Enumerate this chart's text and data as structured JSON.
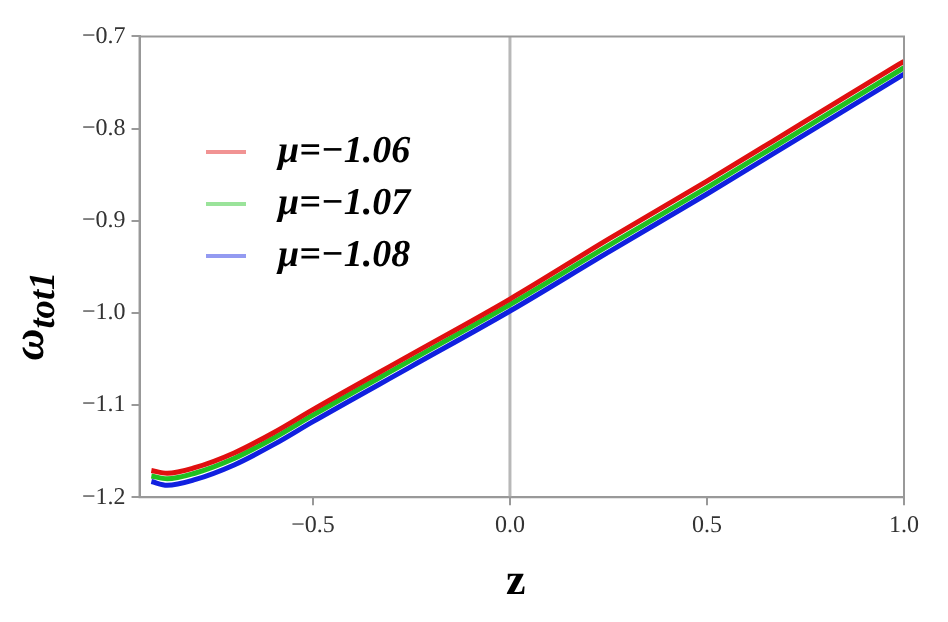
{
  "chart_data": {
    "type": "line",
    "xlabel": "z",
    "ylabel": "ω$_{tot1}$",
    "xlim": [
      -0.94,
      1.0
    ],
    "xticks": [
      {
        "value": -0.5,
        "label": "−0.5"
      },
      {
        "value": 0,
        "label": "0.0"
      },
      0.5,
      {
        "value": 1,
        "label": "1.0"
      }
    ],
    "ylim": [
      -1.2,
      -0.7
    ],
    "yticks": [
      {
        "value": -1.2,
        "label": "−1.2"
      },
      {
        "value": -1.1,
        "label": "−1.1"
      },
      {
        "value": -1.0,
        "label": "−1.0"
      },
      {
        "value": -0.9,
        "label": "−0.9"
      },
      {
        "value": -0.8,
        "label": "−0.8"
      },
      {
        "value": -0.7,
        "label": "−0.7"
      }
    ],
    "x": [
      -0.91,
      -0.87,
      -0.8,
      -0.7,
      -0.6,
      -0.5,
      -0.25,
      0,
      0.25,
      0.5,
      0.75,
      1.0
    ],
    "series": [
      {
        "name": "μ=−1.06",
        "color": "#e01010",
        "values": [
          -1.171,
          -1.174,
          -1.168,
          -1.152,
          -1.13,
          -1.105,
          -1.045,
          -0.985,
          -0.92,
          -0.857,
          -0.792,
          -0.727
        ]
      },
      {
        "name": "μ=−1.07",
        "color": "#20c020",
        "values": [
          -1.177,
          -1.18,
          -1.174,
          -1.158,
          -1.136,
          -1.111,
          -1.051,
          -0.991,
          -0.927,
          -0.864,
          -0.799,
          -0.734
        ]
      },
      {
        "name": "μ=−1.08",
        "color": "#1020e0",
        "values": [
          -1.183,
          -1.187,
          -1.181,
          -1.165,
          -1.143,
          -1.118,
          -1.058,
          -0.998,
          -0.934,
          -0.871,
          -0.806,
          -0.741
        ]
      }
    ],
    "ref_lines": [
      {
        "axis": "x",
        "value": 0,
        "color": "#b8b8b8"
      }
    ],
    "legend": "top left",
    "grid": false,
    "marker": "none",
    "line_style": "solid"
  }
}
